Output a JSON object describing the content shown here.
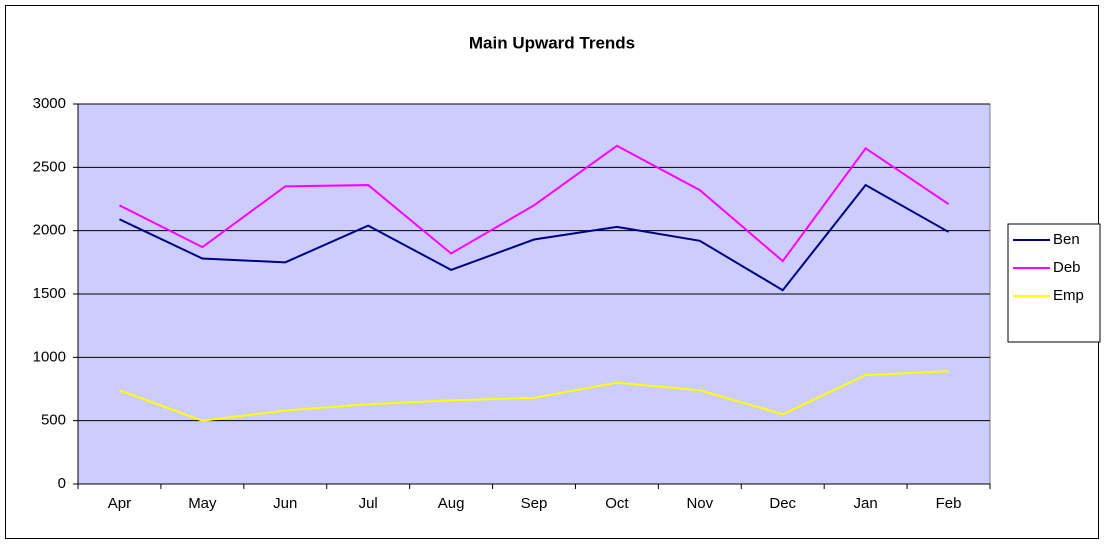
{
  "chart_data": {
    "type": "line",
    "title": "Main Upward Trends",
    "categories": [
      "Apr",
      "May",
      "Jun",
      "Jul",
      "Aug",
      "Sep",
      "Oct",
      "Nov",
      "Dec",
      "Jan",
      "Feb"
    ],
    "series": [
      {
        "name": "Ben",
        "color": "#000080",
        "values": [
          2090,
          1780,
          1750,
          2040,
          1690,
          1930,
          2030,
          1920,
          1530,
          2360,
          1990
        ]
      },
      {
        "name": "Deb",
        "color": "#ff00ff",
        "values": [
          2200,
          1870,
          2350,
          2360,
          1820,
          2200,
          2670,
          2320,
          1760,
          2650,
          2210
        ]
      },
      {
        "name": "Emp",
        "color": "#ffff00",
        "values": [
          740,
          500,
          580,
          630,
          660,
          680,
          800,
          740,
          550,
          860,
          890
        ]
      }
    ],
    "ylim": [
      0,
      3000
    ],
    "yticks": [
      0,
      500,
      1000,
      1500,
      2000,
      2500,
      3000
    ],
    "grid": true,
    "plot_background": "#ccccff",
    "legend": "right"
  }
}
